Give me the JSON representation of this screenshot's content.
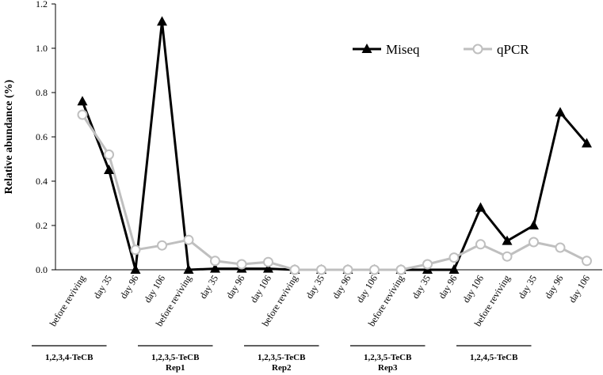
{
  "chart_data": {
    "type": "line",
    "y_label": "Relative abundance (%)",
    "categories": [
      "before reviving",
      "day 35",
      "day 96",
      "day 106",
      "before reviving",
      "day 35",
      "day 96",
      "day 106",
      "before reviving",
      "day 35",
      "day 96",
      "day 106",
      "before reviving",
      "day 35",
      "day 96",
      "day 106",
      "before reviving",
      "day 35",
      "day 96",
      "day 106"
    ],
    "groups": [
      {
        "lines": [
          "1,2,3,4-TeCB"
        ]
      },
      {
        "lines": [
          "1,2,3,5-TeCB",
          "Rep1"
        ]
      },
      {
        "lines": [
          "1,2,3,5-TeCB",
          "Rep2"
        ]
      },
      {
        "lines": [
          "1,2,3,5-TeCB",
          "Rep3"
        ]
      },
      {
        "lines": [
          "1,2,4,5-TeCB"
        ]
      }
    ],
    "series": [
      {
        "name": "Miseq",
        "color": "#000000",
        "marker": "triangle",
        "values": [
          0.76,
          0.45,
          0,
          1.12,
          0,
          0.005,
          0.005,
          0.005,
          0,
          0,
          0,
          0,
          0,
          0,
          0,
          0.28,
          0.13,
          0.2,
          0.71,
          0.57
        ]
      },
      {
        "name": "qPCR",
        "color": "#bfbfbf",
        "marker": "circle",
        "values": [
          0.7,
          0.52,
          0.09,
          0.11,
          0.135,
          0.04,
          0.025,
          0.035,
          0,
          0,
          0,
          0,
          0,
          0.025,
          0.055,
          0.115,
          0.06,
          0.125,
          0.1,
          0.04
        ]
      }
    ],
    "ylim": [
      0,
      1.2
    ],
    "yticks": [
      {
        "value": 0,
        "label": "0.0"
      },
      0.2,
      0.4,
      0.6,
      0.8,
      {
        "value": 1,
        "label": "1.0"
      },
      1.2
    ],
    "legend": "top-right"
  }
}
